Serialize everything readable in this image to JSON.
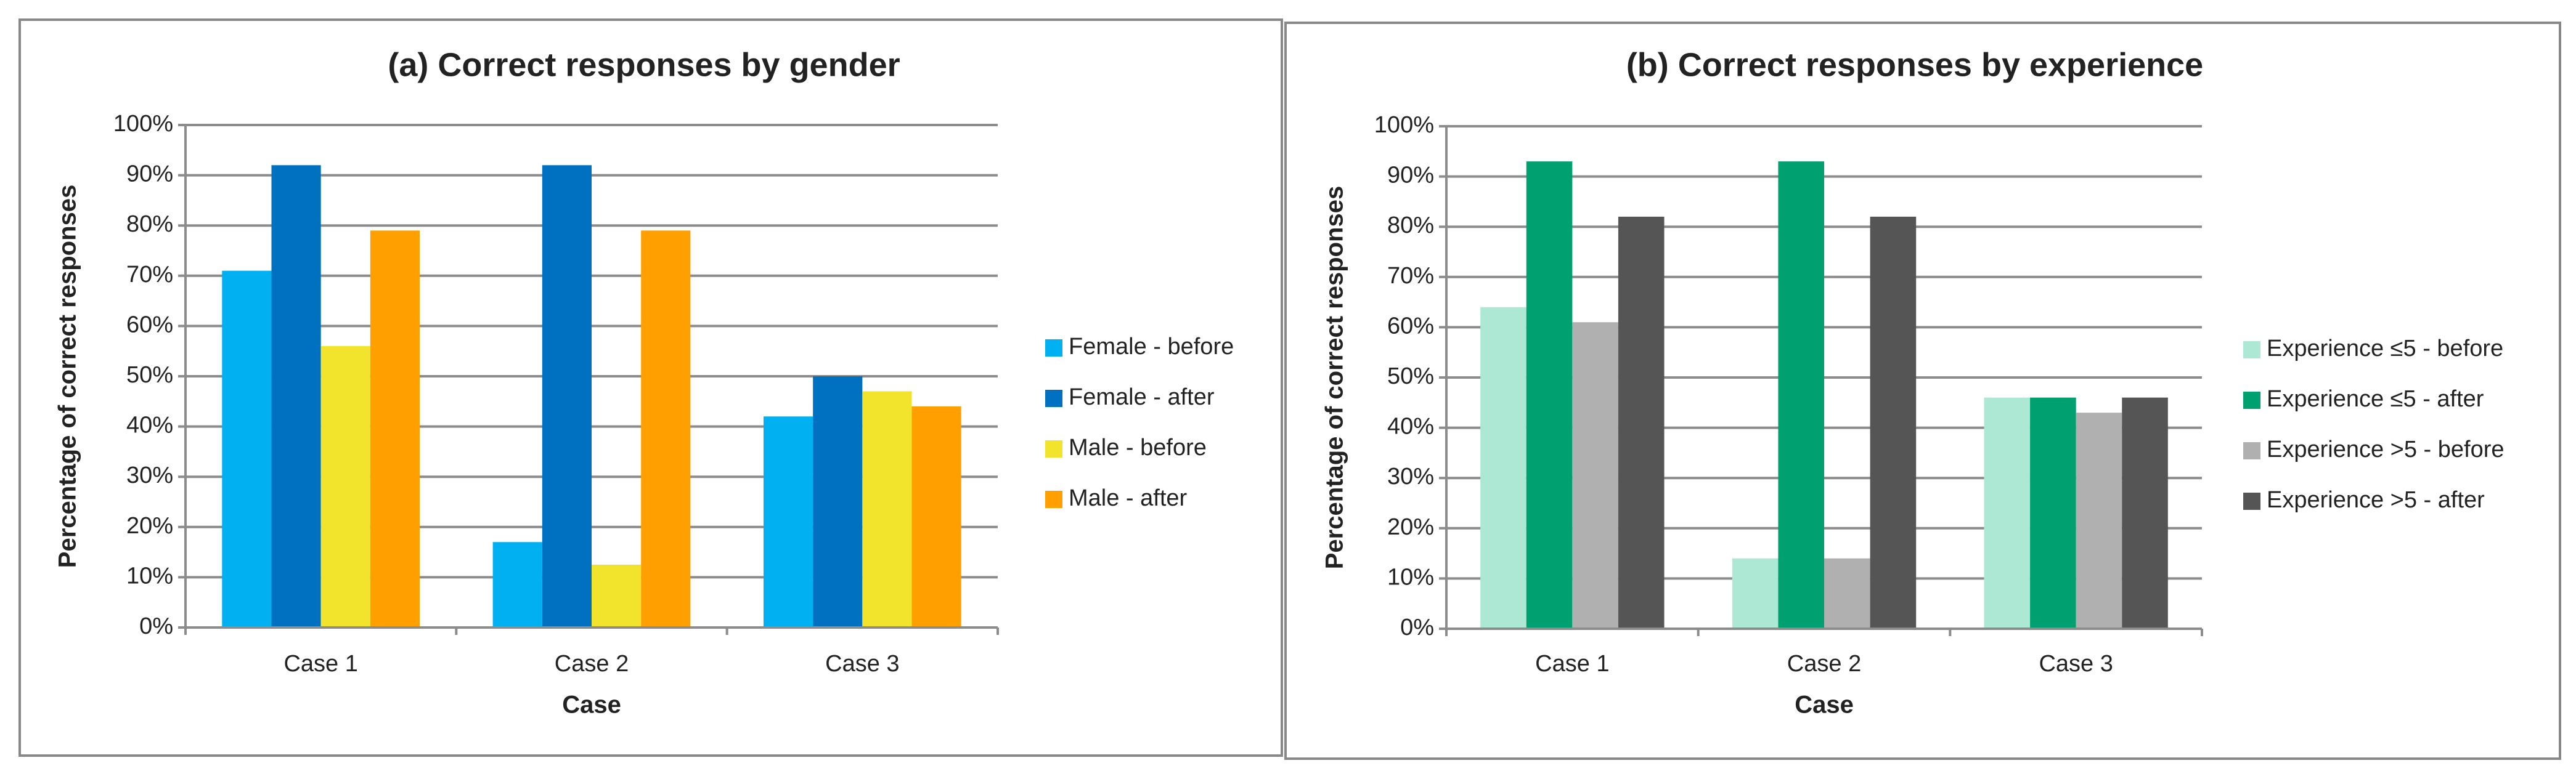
{
  "chart_data": [
    {
      "type": "bar",
      "title": "(a) Correct responses by gender",
      "x_label": "Case",
      "y_label": "Percentage of correct responses",
      "categories": [
        "Case 1",
        "Case 2",
        "Case 3"
      ],
      "series": [
        {
          "name": "Female - before",
          "color": "#00b0f0",
          "values": [
            71,
            17,
            42
          ]
        },
        {
          "name": "Female - after",
          "color": "#0070c0",
          "values": [
            92,
            92,
            50
          ]
        },
        {
          "name": "Male - before",
          "color": "#f2e42c",
          "values": [
            56,
            12.5,
            47
          ]
        },
        {
          "name": "Male - after",
          "color": "#ffa000",
          "values": [
            79,
            79,
            44
          ]
        }
      ],
      "ylim": [
        0,
        100
      ],
      "yticks": [
        {
          "value": 0,
          "label": "0%"
        },
        {
          "value": 10,
          "label": "10%"
        },
        {
          "value": 20,
          "label": "20%"
        },
        {
          "value": 30,
          "label": "30%"
        },
        {
          "value": 40,
          "label": "40%"
        },
        {
          "value": 50,
          "label": "50%"
        },
        {
          "value": 60,
          "label": "60%"
        },
        {
          "value": 70,
          "label": "70%"
        },
        {
          "value": 80,
          "label": "80%"
        },
        {
          "value": 90,
          "label": "90%"
        },
        {
          "value": 100,
          "label": "100%"
        }
      ],
      "grid": true,
      "legend": "right"
    },
    {
      "type": "bar",
      "title": "(b) Correct responses by experience",
      "x_label": "Case",
      "y_label": "Percentage of correct responses",
      "categories": [
        "Case 1",
        "Case 2",
        "Case 3"
      ],
      "series": [
        {
          "name": "Experience ≤5 - before",
          "color": "#ade8d4",
          "values": [
            64,
            14,
            46
          ]
        },
        {
          "name": "Experience ≤5 - after",
          "color": "#00a070",
          "values": [
            93,
            93,
            46
          ]
        },
        {
          "name": "Experience >5 - before",
          "color": "#b0b0b0",
          "values": [
            61,
            14,
            43
          ]
        },
        {
          "name": "Experience >5 - after",
          "color": "#555555",
          "values": [
            82,
            82,
            46
          ]
        }
      ],
      "ylim": [
        0,
        100
      ],
      "yticks": [
        {
          "value": 0,
          "label": "0%"
        },
        {
          "value": 10,
          "label": "10%"
        },
        {
          "value": 20,
          "label": "20%"
        },
        {
          "value": 30,
          "label": "30%"
        },
        {
          "value": 40,
          "label": "40%"
        },
        {
          "value": 50,
          "label": "50%"
        },
        {
          "value": 60,
          "label": "60%"
        },
        {
          "value": 70,
          "label": "70%"
        },
        {
          "value": 80,
          "label": "80%"
        },
        {
          "value": 90,
          "label": "90%"
        },
        {
          "value": 100,
          "label": "100%"
        }
      ],
      "grid": true,
      "legend": "right"
    }
  ]
}
